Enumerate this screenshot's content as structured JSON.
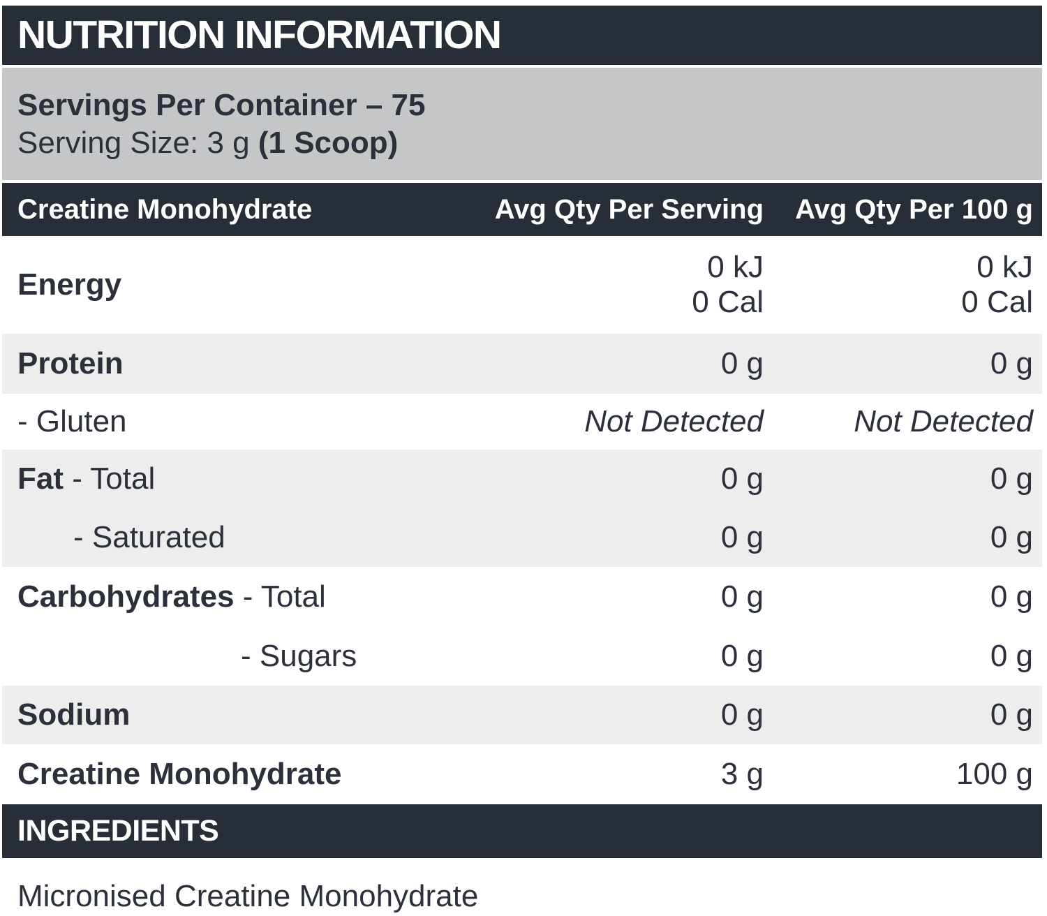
{
  "title": "NUTRITION INFORMATION",
  "serving_info": {
    "servings_per_container": "Servings Per Container – 75",
    "serving_size_regular": "Serving Size: 3 g ",
    "serving_size_bold": "(1 Scoop)"
  },
  "table": {
    "columns": {
      "name": "Creatine Monohydrate",
      "per_serving": "Avg Qty Per Serving",
      "per_100g": "Avg Qty Per 100 g"
    },
    "rows": {
      "energy": {
        "label": "Energy",
        "serving_kj": "0 kJ",
        "serving_cal": "0 Cal",
        "per100_kj": "0 kJ",
        "per100_cal": "0 Cal"
      },
      "protein": {
        "label": "Protein",
        "serving": "0 g",
        "per100": "0 g"
      },
      "gluten": {
        "label": "- Gluten",
        "serving": "Not Detected",
        "per100": "Not Detected"
      },
      "fat": {
        "label_bold": "Fat",
        "label_rest": " - Total",
        "serving": "0 g",
        "per100": "0 g"
      },
      "saturated": {
        "label": "- Saturated",
        "serving": "0 g",
        "per100": "0 g"
      },
      "carbohydrates": {
        "label_bold": "Carbohydrates",
        "label_rest": " - Total",
        "serving": "0 g",
        "per100": "0 g"
      },
      "sugars": {
        "label": "- Sugars",
        "serving": "0 g",
        "per100": "0 g"
      },
      "sodium": {
        "label": "Sodium",
        "serving": "0 g",
        "per100": "0 g"
      },
      "creatine": {
        "label": "Creatine Monohydrate",
        "serving": "3 g",
        "per100": "100 g"
      }
    }
  },
  "ingredients": {
    "heading": "INGREDIENTS",
    "text": "Micronised Creatine Monohydrate"
  },
  "colors": {
    "dark": "#282e38",
    "banner": "#c5c6c8",
    "rowgray": "#ededee",
    "text": "#2b303a"
  }
}
